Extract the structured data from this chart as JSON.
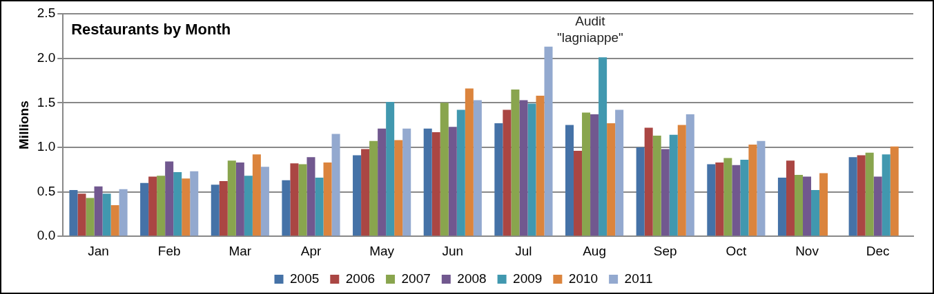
{
  "chart_data": {
    "type": "bar",
    "title": "Restaurants by Month",
    "ylabel": "Millions",
    "categories": [
      "Jan",
      "Feb",
      "Mar",
      "Apr",
      "May",
      "Jun",
      "Jul",
      "Aug",
      "Sep",
      "Oct",
      "Nov",
      "Dec"
    ],
    "series": [
      {
        "name": "2005",
        "color": "#4572a7",
        "values": [
          0.52,
          0.6,
          0.58,
          0.63,
          0.91,
          1.21,
          1.27,
          1.25,
          1.0,
          0.81,
          0.66,
          0.89
        ]
      },
      {
        "name": "2006",
        "color": "#aa4643",
        "values": [
          0.48,
          0.67,
          0.62,
          0.82,
          0.98,
          1.17,
          1.42,
          0.96,
          1.22,
          0.83,
          0.85,
          0.91
        ]
      },
      {
        "name": "2007",
        "color": "#89a54e",
        "values": [
          0.43,
          0.68,
          0.85,
          0.81,
          1.07,
          1.5,
          1.65,
          1.39,
          1.13,
          0.88,
          0.69,
          0.94
        ]
      },
      {
        "name": "2008",
        "color": "#71588f",
        "values": [
          0.56,
          0.84,
          0.83,
          0.89,
          1.21,
          1.23,
          1.53,
          1.37,
          0.98,
          0.8,
          0.67,
          0.67
        ]
      },
      {
        "name": "2009",
        "color": "#4198af",
        "values": [
          0.48,
          0.72,
          0.68,
          0.66,
          1.51,
          1.42,
          1.49,
          2.01,
          1.14,
          0.86,
          0.52,
          0.92
        ]
      },
      {
        "name": "2010",
        "color": "#db843d",
        "values": [
          0.35,
          0.65,
          0.92,
          0.83,
          1.08,
          1.66,
          1.58,
          1.27,
          1.25,
          1.03,
          0.71,
          1.01
        ]
      },
      {
        "name": "2011",
        "color": "#93a9cf",
        "values": [
          0.53,
          0.73,
          0.78,
          1.15,
          1.21,
          1.53,
          2.13,
          1.42,
          1.37,
          1.07,
          null,
          null
        ]
      }
    ],
    "ylim": [
      0,
      2.5
    ],
    "yticks": [
      {
        "value": 0,
        "label": "0.0"
      },
      {
        "value": 0.5,
        "label": "0.5"
      },
      {
        "value": 1,
        "label": "1.0"
      },
      {
        "value": 1.5,
        "label": "1.5"
      },
      {
        "value": 2,
        "label": "2.0"
      },
      {
        "value": 2.5,
        "label": "2.5"
      }
    ],
    "grid": "y",
    "legend": "bottom",
    "annotations": [
      "Audit\n\"lagniappe\""
    ]
  }
}
